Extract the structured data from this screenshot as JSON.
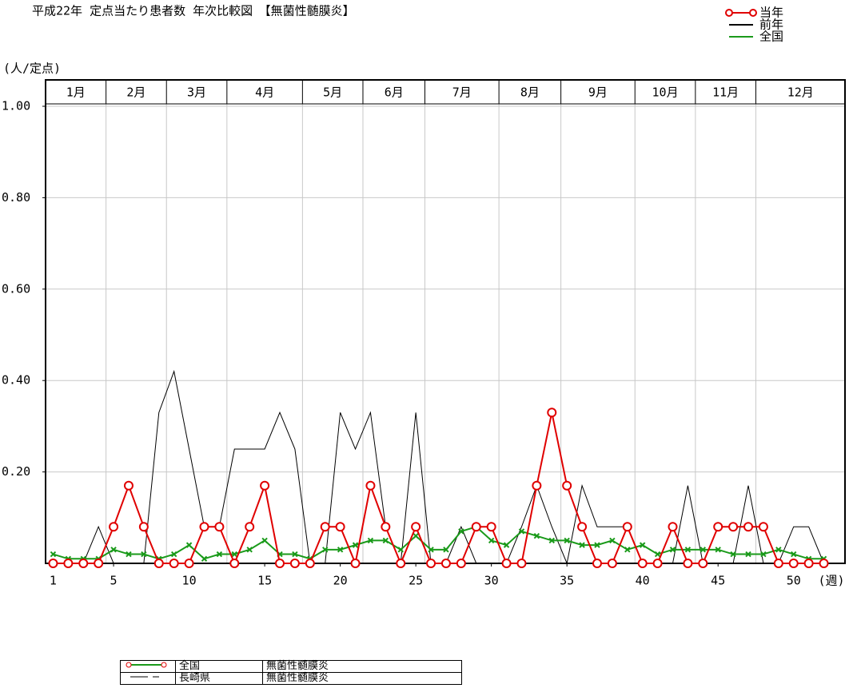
{
  "chart_data": {
    "type": "line",
    "title": "平成22年 定点当たり患者数 年次比較図　【無菌性髄膜炎】",
    "y_label": "(人/定点)",
    "x_label": "(週)",
    "x": [
      1,
      2,
      3,
      4,
      5,
      6,
      7,
      8,
      9,
      10,
      11,
      12,
      13,
      14,
      15,
      16,
      17,
      18,
      19,
      20,
      21,
      22,
      23,
      24,
      25,
      26,
      27,
      28,
      29,
      30,
      31,
      32,
      33,
      34,
      35,
      36,
      37,
      38,
      39,
      40,
      41,
      42,
      43,
      44,
      45,
      46,
      47,
      48,
      49,
      50,
      51,
      52
    ],
    "xlim": [
      0.5,
      53.4
    ],
    "xticks": [
      1,
      5,
      10,
      15,
      20,
      25,
      30,
      35,
      40,
      45,
      50
    ],
    "ylim": [
      0,
      1
    ],
    "yticks": [
      {
        "value": 0.2,
        "label": "0.20"
      },
      {
        "value": 0.4,
        "label": "0.40"
      },
      {
        "value": 0.6,
        "label": "0.60"
      },
      {
        "value": 0.8,
        "label": "0.80"
      },
      {
        "value": 1,
        "label": "1.00"
      }
    ],
    "months": [
      "1月",
      "2月",
      "3月",
      "4月",
      "5月",
      "6月",
      "7月",
      "8月",
      "9月",
      "10月",
      "11月",
      "12月"
    ],
    "month_edges": [
      0.5,
      4.5,
      8.5,
      12.5,
      17.5,
      21.5,
      25.6,
      30.5,
      34.6,
      39.5,
      43.5,
      47.5,
      53.4
    ],
    "grid": true,
    "legend": "top-right",
    "series": [
      {
        "name": "当年",
        "color": "#e00000",
        "marker": "circle",
        "values": [
          0,
          0,
          0,
          0,
          0.08,
          0.17,
          0.08,
          0,
          0,
          0,
          0.08,
          0.08,
          0,
          0.08,
          0.17,
          0,
          0,
          0,
          0.08,
          0.08,
          0,
          0.17,
          0.08,
          0,
          0.08,
          0,
          0,
          0,
          0.08,
          0.08,
          0,
          0,
          0.17,
          0.33,
          0.17,
          0.08,
          0,
          0,
          0.08,
          0,
          0,
          0.08,
          0,
          0,
          0.08,
          0.08,
          0.08,
          0.08,
          0,
          0,
          0,
          0
        ]
      },
      {
        "name": "前年",
        "color": "#000000",
        "marker": "none",
        "values": [
          0,
          0,
          0,
          0.08,
          0,
          0,
          0,
          0.33,
          0.42,
          0.25,
          0.08,
          0.08,
          0.25,
          0.25,
          0.25,
          0.33,
          0.25,
          0,
          0,
          0.33,
          0.25,
          0.33,
          0.08,
          0,
          0.33,
          0,
          0,
          0.08,
          0,
          0,
          0,
          0.08,
          0.17,
          0.08,
          0,
          0.17,
          0.08,
          0.08,
          0.08,
          0,
          0,
          0,
          0.17,
          0,
          0,
          0,
          0.17,
          0,
          0,
          0.08,
          0.08,
          0
        ]
      },
      {
        "name": "全国",
        "color": "#1a9a1a",
        "marker": "x",
        "values": [
          0.02,
          0.01,
          0.01,
          0.01,
          0.03,
          0.02,
          0.02,
          0.01,
          0.02,
          0.04,
          0.01,
          0.02,
          0.02,
          0.03,
          0.05,
          0.02,
          0.02,
          0.01,
          0.03,
          0.03,
          0.04,
          0.05,
          0.05,
          0.03,
          0.06,
          0.03,
          0.03,
          0.07,
          0.08,
          0.05,
          0.04,
          0.07,
          0.06,
          0.05,
          0.05,
          0.04,
          0.04,
          0.05,
          0.03,
          0.04,
          0.02,
          0.03,
          0.03,
          0.03,
          0.03,
          0.02,
          0.02,
          0.02,
          0.03,
          0.02,
          0.01,
          0.01
        ]
      }
    ],
    "footer_table": [
      [
        "全国",
        "無菌性髄膜炎"
      ],
      [
        "長崎県",
        "無菌性髄膜炎"
      ]
    ]
  }
}
